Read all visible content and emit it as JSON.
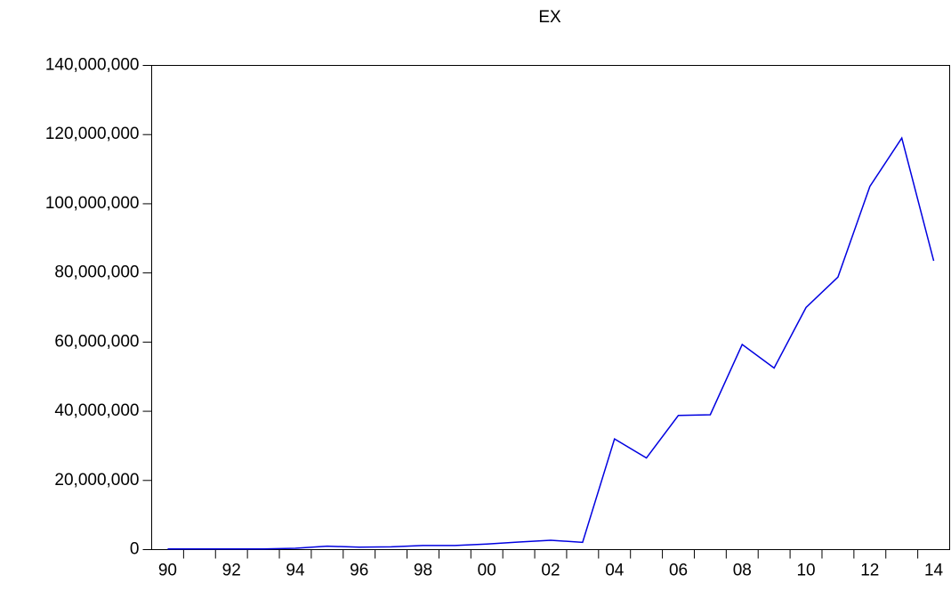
{
  "chart_data": {
    "type": "line",
    "title": "EX",
    "categories": [
      "90",
      null,
      "92",
      null,
      "94",
      null,
      "96",
      null,
      "98",
      null,
      "00",
      null,
      "02",
      null,
      "04",
      null,
      "06",
      null,
      "08",
      null,
      "10",
      null,
      "12",
      null,
      "14"
    ],
    "series": [
      {
        "name": "EX",
        "color": "#0000e0",
        "values": [
          200000,
          200000,
          200000,
          200000,
          400000,
          1000000,
          700000,
          800000,
          1200000,
          1200000,
          1600000,
          2200000,
          2700000,
          2100000,
          32000000,
          26500000,
          38800000,
          39000000,
          59300000,
          52500000,
          70000000,
          78800000,
          105000000,
          119000000,
          83500000
        ]
      }
    ],
    "ylim": [
      0,
      140000000
    ],
    "yticks": [
      0,
      {
        "value": 20000000,
        "label": "20,000,000"
      },
      {
        "value": 40000000,
        "label": "40,000,000"
      },
      {
        "value": 60000000,
        "label": "60,000,000"
      },
      {
        "value": 80000000,
        "label": "80,000,000"
      },
      {
        "value": 100000000,
        "label": "100,000,000"
      },
      {
        "value": 120000000,
        "label": "120,000,000"
      },
      {
        "value": 140000000,
        "label": "140,000,000"
      }
    ],
    "grid": false
  }
}
